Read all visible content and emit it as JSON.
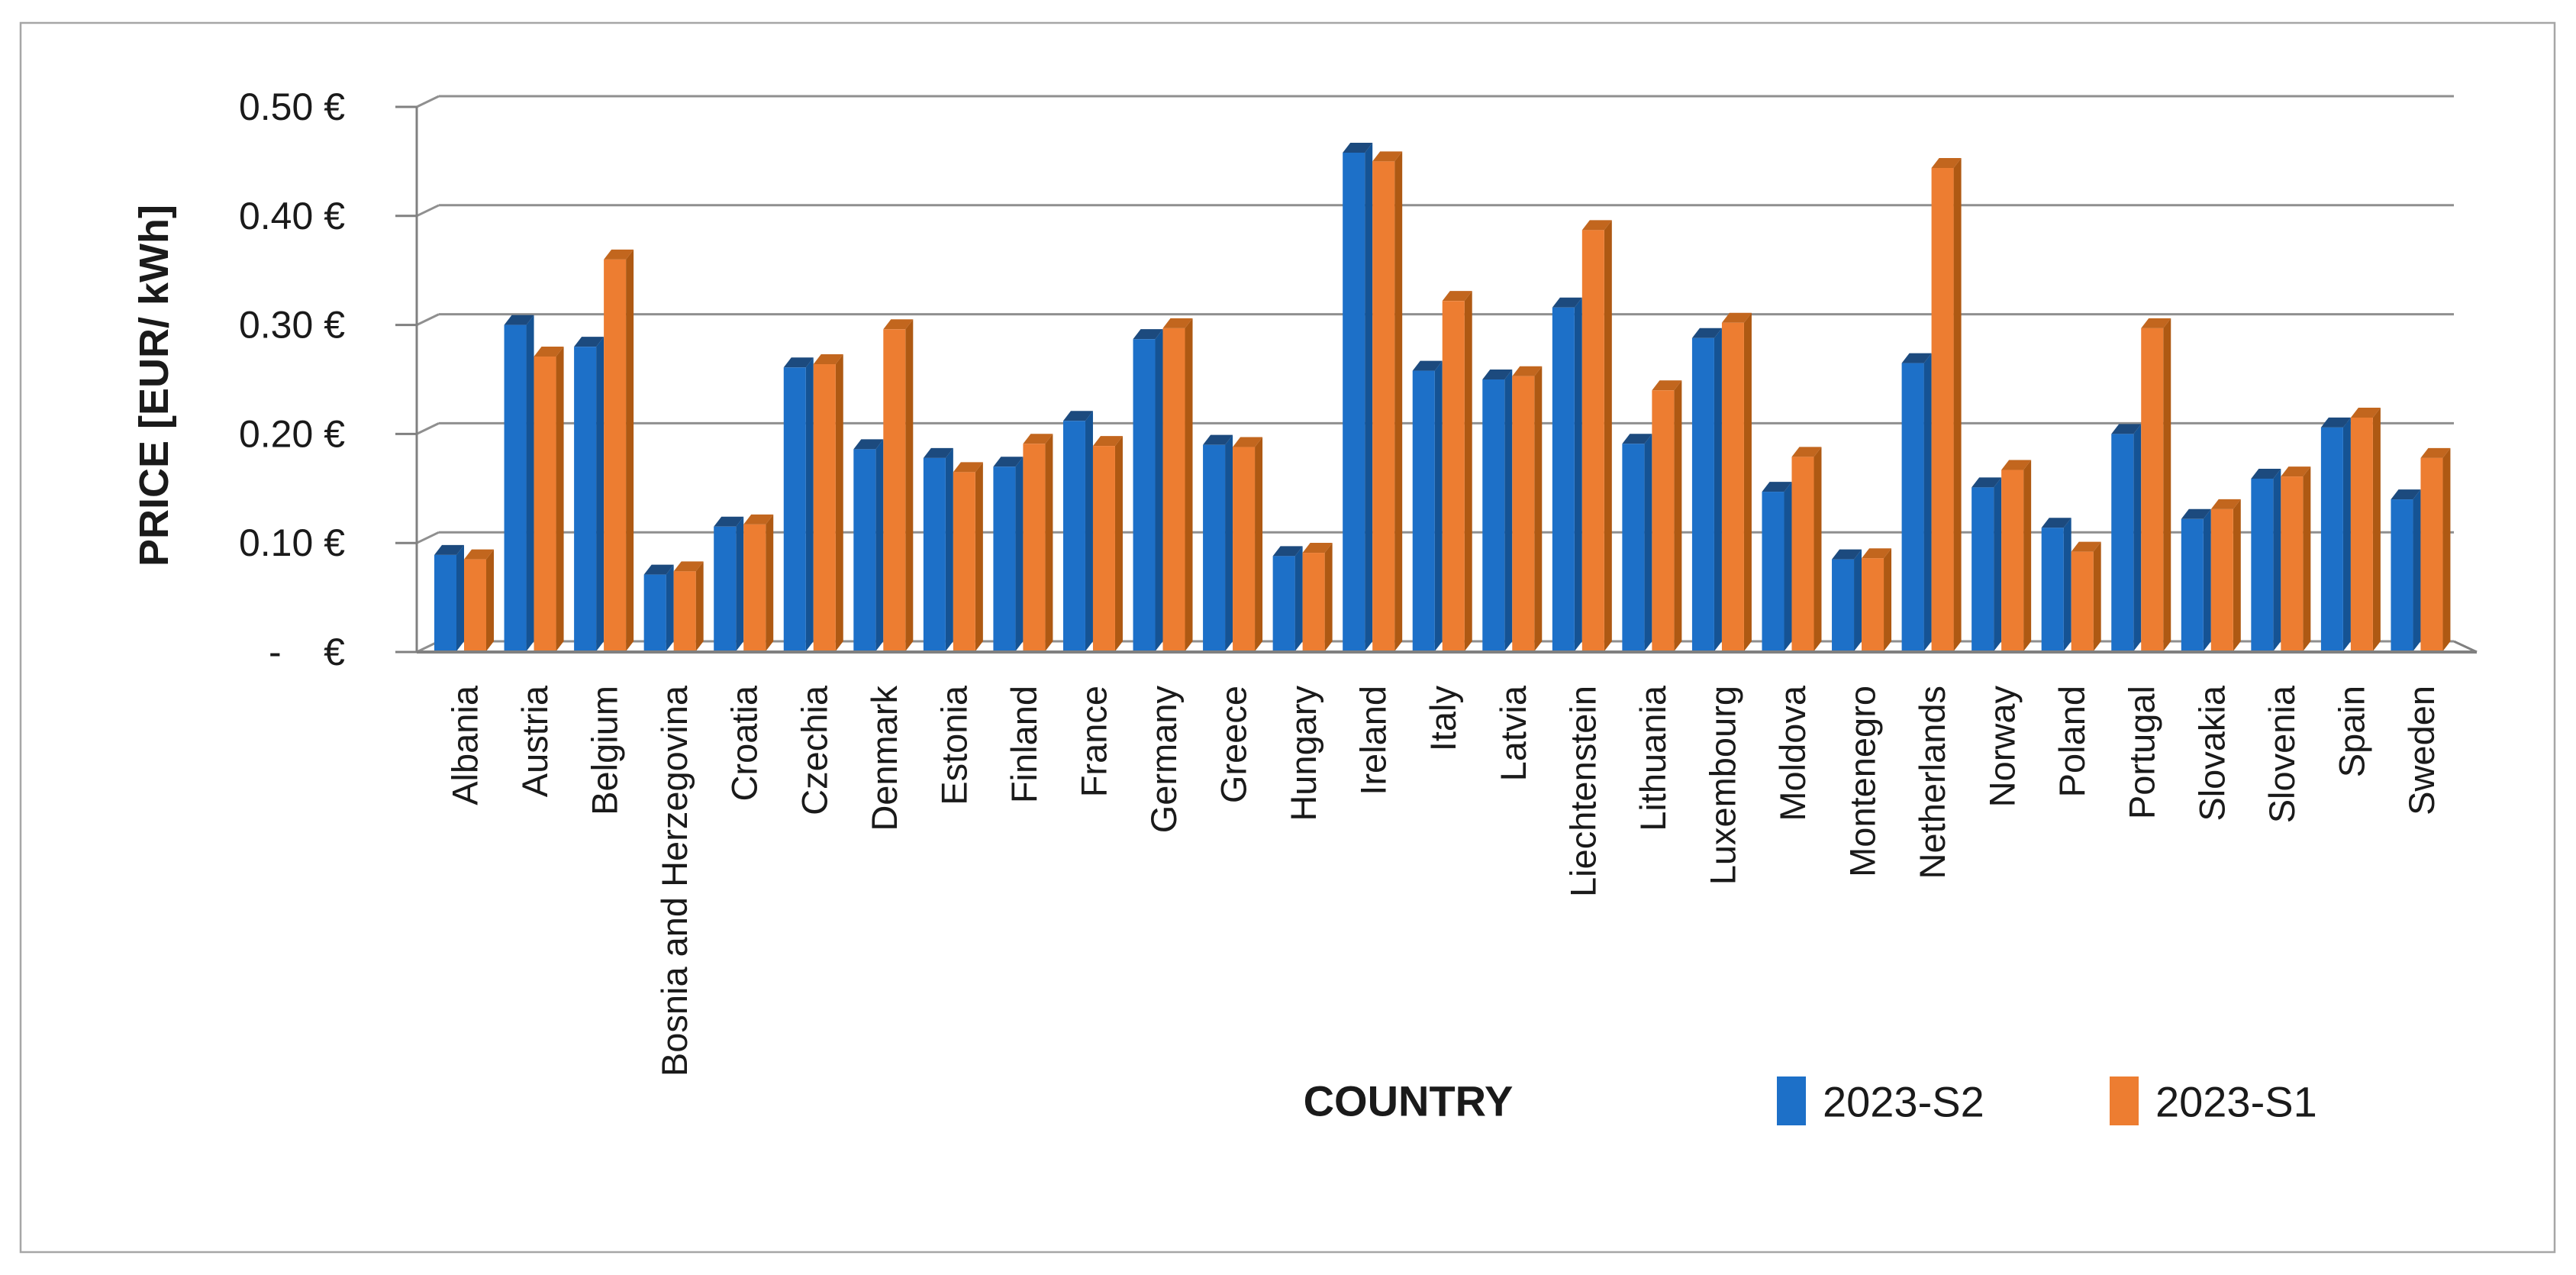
{
  "figure": {
    "background": "#ffffff",
    "border_color": "#a6a6a6"
  },
  "chart_data": {
    "type": "bar",
    "title": "",
    "xlabel": "COUNTRY",
    "ylabel": "PRICE [EUR/ kWh]",
    "ylim": [
      0,
      0.5
    ],
    "ytick_step": 0.1,
    "ytick_labels": [
      "-    €",
      "0.10 €",
      "0.20 €",
      "0.30 €",
      "0.40 €",
      "0.50 €"
    ],
    "grid": true,
    "legend_position": "bottom",
    "categories": [
      "Albania",
      "Austria",
      "Belgium",
      "Bosnia and Herzegovina",
      "Croatia",
      "Czechia",
      "Denmark",
      "Estonia",
      "Finland",
      "France",
      "Germany",
      "Greece",
      "Hungary",
      "Ireland",
      "Italy",
      "Latvia",
      "Liechtenstein",
      "Lithuania",
      "Luxembourg",
      "Moldova",
      "Montenegro",
      "Netherlands",
      "Norway",
      "Poland",
      "Portugal",
      "Slovakia",
      "Slovenia",
      "Spain",
      "Sweden"
    ],
    "series": [
      {
        "name": "2023-S2",
        "color": "#1d70c8",
        "side_color": "#155394",
        "top_color": "#1c4a7e",
        "values": [
          0.089,
          0.3,
          0.28,
          0.071,
          0.115,
          0.261,
          0.186,
          0.178,
          0.17,
          0.212,
          0.287,
          0.19,
          0.088,
          0.458,
          0.258,
          0.25,
          0.316,
          0.191,
          0.288,
          0.147,
          0.085,
          0.265,
          0.151,
          0.114,
          0.2,
          0.122,
          0.159,
          0.206,
          0.14
        ]
      },
      {
        "name": "2023-S1",
        "color": "#ed7d31",
        "side_color": "#ae5913",
        "top_color": "#c2661e",
        "values": [
          0.085,
          0.271,
          0.36,
          0.074,
          0.117,
          0.264,
          0.296,
          0.165,
          0.191,
          0.189,
          0.297,
          0.188,
          0.091,
          0.45,
          0.322,
          0.253,
          0.387,
          0.24,
          0.302,
          0.179,
          0.086,
          0.444,
          0.167,
          0.092,
          0.297,
          0.131,
          0.161,
          0.215,
          0.178
        ]
      }
    ],
    "gridline_color": "#8f8f8f",
    "axis_color": "#808080",
    "text_color": "#1a1a1a"
  }
}
